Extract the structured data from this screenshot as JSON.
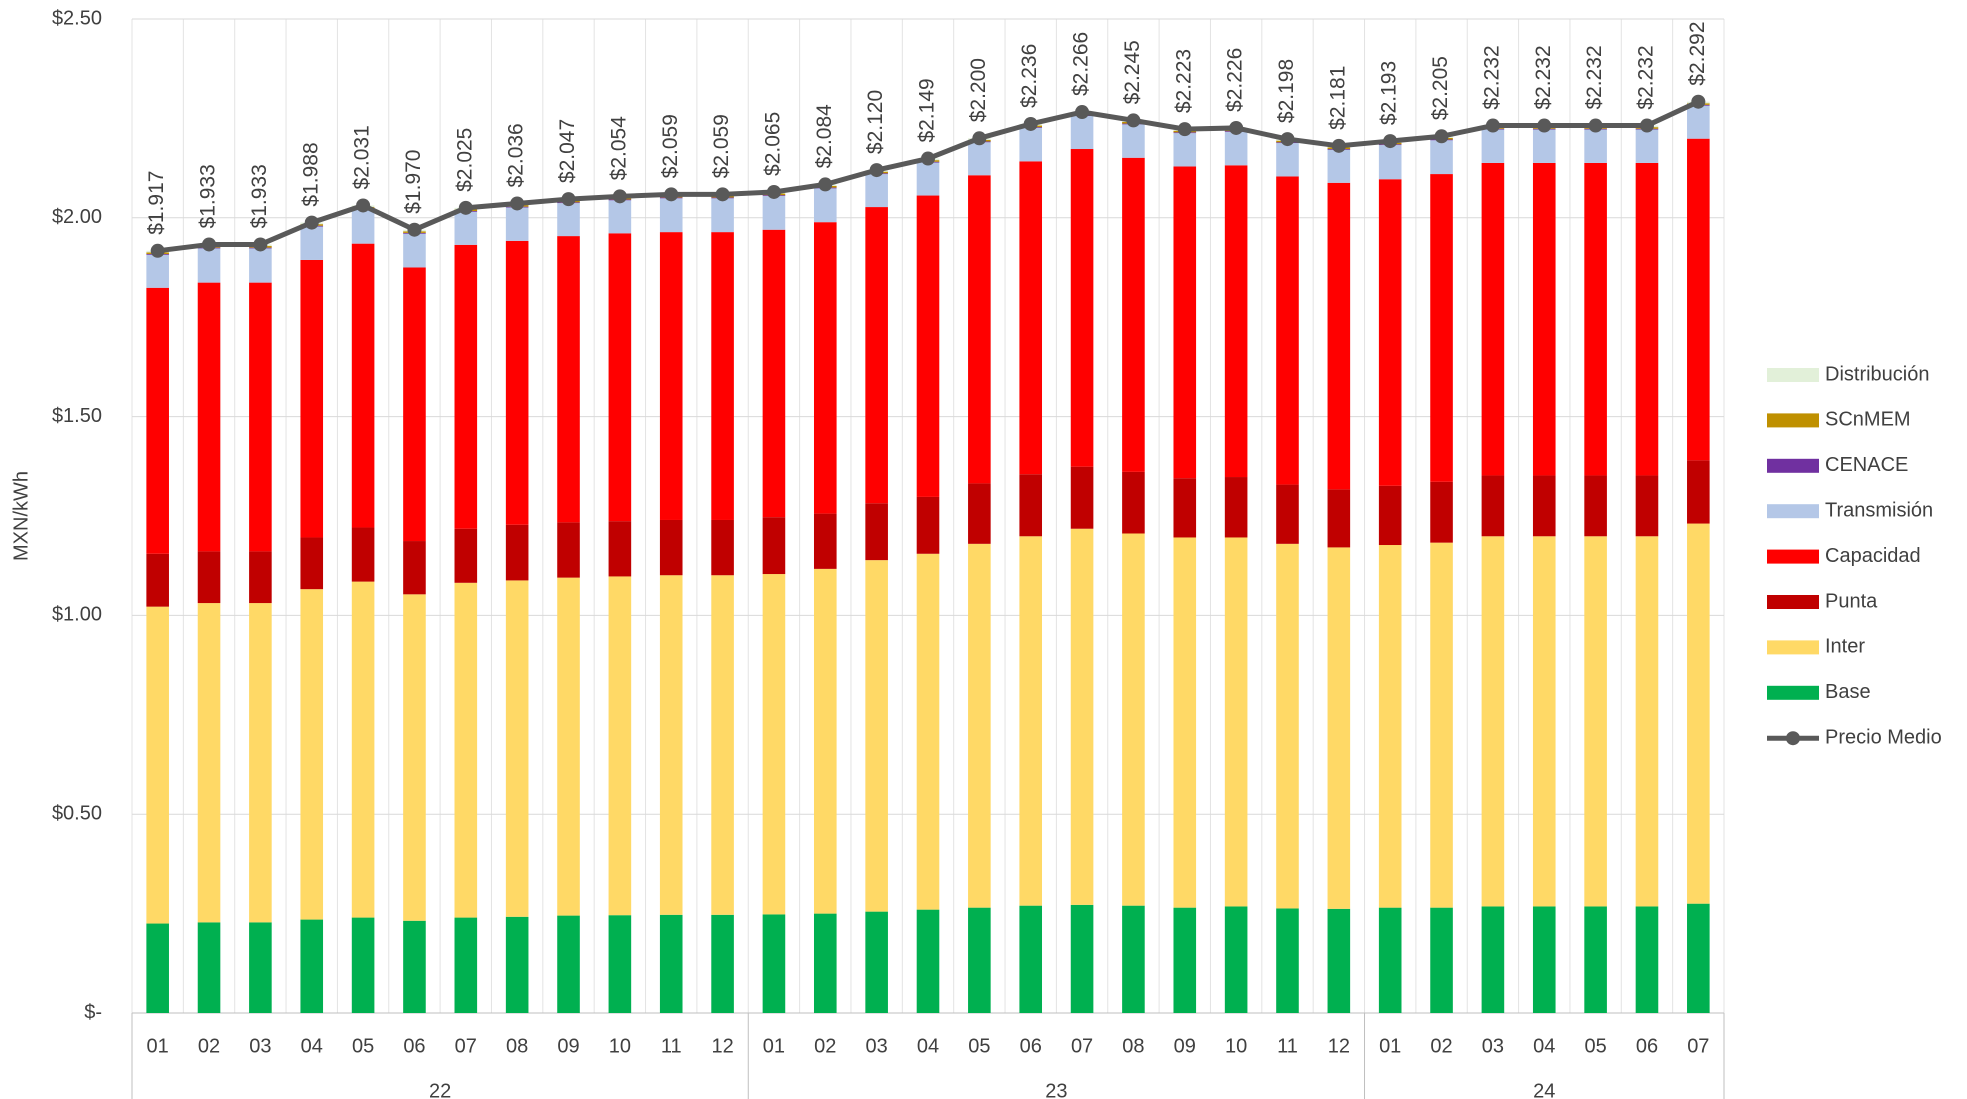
{
  "chart_data": {
    "type": "stacked_bar_line",
    "y_label": "MXN/kWh",
    "categories": [
      "01",
      "02",
      "03",
      "04",
      "05",
      "06",
      "07",
      "08",
      "09",
      "10",
      "11",
      "12",
      "01",
      "02",
      "03",
      "04",
      "05",
      "06",
      "07",
      "08",
      "09",
      "10",
      "11",
      "12",
      "01",
      "02",
      "03",
      "04",
      "05",
      "06",
      "07"
    ],
    "years": [
      "22",
      "22",
      "22",
      "22",
      "22",
      "22",
      "22",
      "22",
      "22",
      "22",
      "22",
      "22",
      "23",
      "23",
      "23",
      "23",
      "23",
      "23",
      "23",
      "23",
      "23",
      "23",
      "23",
      "23",
      "24",
      "24",
      "24",
      "24",
      "24",
      "24",
      "24"
    ],
    "ylim": [
      0,
      2.5
    ],
    "yticks": [
      {
        "value": 0,
        "label": "$-"
      },
      {
        "value": 0.5,
        "label": "$0.50"
      },
      {
        "value": 1,
        "label": "$1.00"
      },
      {
        "value": 1.5,
        "label": "$1.50"
      },
      {
        "value": 2,
        "label": "$2.00"
      },
      {
        "value": 2.5,
        "label": "$2.50"
      }
    ],
    "grid": true,
    "legend": "right",
    "series": [
      {
        "name": "Base",
        "color": "#00b050",
        "values": [
          0.225,
          0.228,
          0.228,
          0.235,
          0.24,
          0.232,
          0.24,
          0.242,
          0.245,
          0.246,
          0.247,
          0.247,
          0.248,
          0.25,
          0.255,
          0.26,
          0.265,
          0.27,
          0.272,
          0.27,
          0.265,
          0.268,
          0.263,
          0.262,
          0.265,
          0.265,
          0.268,
          0.268,
          0.268,
          0.268,
          0.275
        ]
      },
      {
        "name": "Inter",
        "color": "#ffd966",
        "values": [
          0.797,
          0.803,
          0.803,
          0.831,
          0.845,
          0.821,
          0.842,
          0.846,
          0.85,
          0.852,
          0.854,
          0.854,
          0.856,
          0.867,
          0.884,
          0.895,
          0.915,
          0.929,
          0.946,
          0.936,
          0.931,
          0.928,
          0.917,
          0.909,
          0.912,
          0.918,
          0.931,
          0.931,
          0.931,
          0.931,
          0.956
        ]
      },
      {
        "name": "Punta",
        "color": "#c00000",
        "values": [
          0.133,
          0.13,
          0.13,
          0.13,
          0.136,
          0.134,
          0.136,
          0.14,
          0.139,
          0.139,
          0.139,
          0.139,
          0.143,
          0.139,
          0.143,
          0.143,
          0.152,
          0.156,
          0.156,
          0.155,
          0.149,
          0.152,
          0.149,
          0.146,
          0.149,
          0.153,
          0.153,
          0.153,
          0.153,
          0.153,
          0.159
        ]
      },
      {
        "name": "Capacidad",
        "color": "#ff0000",
        "values": [
          0.669,
          0.676,
          0.676,
          0.698,
          0.714,
          0.688,
          0.714,
          0.714,
          0.72,
          0.724,
          0.724,
          0.724,
          0.723,
          0.733,
          0.745,
          0.758,
          0.775,
          0.787,
          0.799,
          0.79,
          0.784,
          0.784,
          0.775,
          0.771,
          0.771,
          0.774,
          0.786,
          0.786,
          0.786,
          0.786,
          0.809
        ]
      },
      {
        "name": "Transmisión",
        "color": "#b4c7e7",
        "values": [
          0.083,
          0.086,
          0.086,
          0.084,
          0.086,
          0.085,
          0.083,
          0.084,
          0.083,
          0.083,
          0.085,
          0.085,
          0.085,
          0.085,
          0.083,
          0.083,
          0.083,
          0.084,
          0.083,
          0.084,
          0.084,
          0.084,
          0.084,
          0.083,
          0.086,
          0.085,
          0.084,
          0.084,
          0.084,
          0.084,
          0.083
        ]
      },
      {
        "name": "CENACE",
        "color": "#7030a0",
        "values": [
          0.002,
          0.002,
          0.002,
          0.002,
          0.002,
          0.002,
          0.002,
          0.002,
          0.002,
          0.002,
          0.002,
          0.002,
          0.002,
          0.002,
          0.002,
          0.002,
          0.002,
          0.002,
          0.002,
          0.002,
          0.002,
          0.002,
          0.002,
          0.002,
          0.002,
          0.002,
          0.002,
          0.002,
          0.002,
          0.002,
          0.002
        ]
      },
      {
        "name": "SCnMEM",
        "color": "#bf9000",
        "values": [
          0.004,
          0.004,
          0.004,
          0.004,
          0.004,
          0.004,
          0.004,
          0.004,
          0.004,
          0.004,
          0.004,
          0.004,
          0.004,
          0.004,
          0.004,
          0.004,
          0.004,
          0.004,
          0.004,
          0.004,
          0.004,
          0.004,
          0.004,
          0.004,
          0.004,
          0.004,
          0.004,
          0.004,
          0.004,
          0.004,
          0.004
        ]
      },
      {
        "name": "Distribución",
        "color": "#e2f0d9",
        "values": [
          0.004,
          0.004,
          0.004,
          0.004,
          0.004,
          0.004,
          0.004,
          0.004,
          0.004,
          0.004,
          0.004,
          0.004,
          0.004,
          0.004,
          0.004,
          0.004,
          0.004,
          0.004,
          0.004,
          0.004,
          0.004,
          0.004,
          0.004,
          0.004,
          0.004,
          0.004,
          0.004,
          0.004,
          0.004,
          0.004,
          0.004
        ]
      },
      {
        "name": "Precio Medio",
        "type": "line",
        "color": "#595959",
        "values": [
          1.917,
          1.933,
          1.933,
          1.988,
          2.031,
          1.97,
          2.025,
          2.036,
          2.047,
          2.054,
          2.059,
          2.059,
          2.065,
          2.084,
          2.12,
          2.149,
          2.2,
          2.236,
          2.266,
          2.245,
          2.223,
          2.226,
          2.198,
          2.181,
          2.193,
          2.205,
          2.232,
          2.232,
          2.232,
          2.232,
          2.292
        ],
        "value_labels": [
          "$1.917",
          "$1.933",
          "$1.933",
          "$1.988",
          "$2.031",
          "$1.970",
          "$2.025",
          "$2.036",
          "$2.047",
          "$2.054",
          "$2.059",
          "$2.059",
          "$2.065",
          "$2.084",
          "$2.120",
          "$2.149",
          "$2.200",
          "$2.236",
          "$2.266",
          "$2.245",
          "$2.223",
          "$2.226",
          "$2.198",
          "$2.181",
          "$2.193",
          "$2.205",
          "$2.232",
          "$2.232",
          "$2.232",
          "$2.232",
          "$2.292"
        ]
      }
    ]
  }
}
